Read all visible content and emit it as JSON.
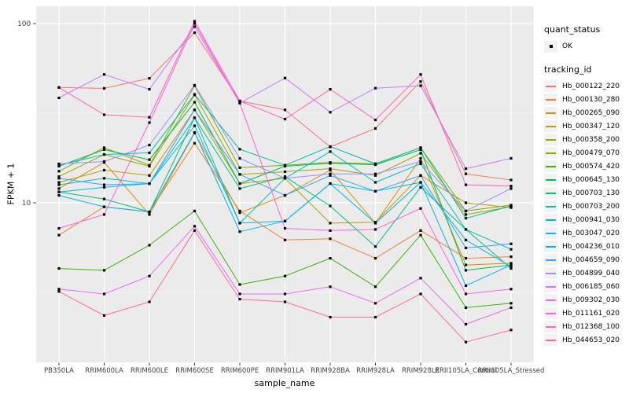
{
  "chart_data": {
    "type": "line",
    "title": "",
    "xlabel": "sample_name",
    "ylabel": "FPKM + 1",
    "y_scale": "log10",
    "y_ticks": [
      100,
      10
    ],
    "ylim": [
      1.3,
      125
    ],
    "grid": true,
    "legend_position": "right",
    "x_categories": [
      "PB350LA",
      "RRIM600LA",
      "RRIM600LE",
      "RRIM600SE",
      "RRIM600PE",
      "RRIM901LA",
      "RRIM928BA",
      "RRIM928LA",
      "RRIM928LE",
      "RRII105LA_Control",
      "RRII105LA_Stressed"
    ],
    "legend": {
      "quant_status_title": "quant_status",
      "quant_status_items": [
        {
          "label": "OK",
          "marker": "black-point"
        }
      ],
      "tracking_id_title": "tracking_id"
    },
    "series": [
      {
        "name": "Hb_000122_220",
        "color": "#F8766D",
        "values": [
          44,
          43.5,
          49.5,
          89,
          37,
          33,
          20.5,
          26,
          47.5,
          14.5,
          13.4
        ]
      },
      {
        "name": "Hb_000130_280",
        "color": "#EA8331",
        "values": [
          6.6,
          9.5,
          8.9,
          21.5,
          9.0,
          6.2,
          6.3,
          4.9,
          7.0,
          4.9,
          5.0
        ]
      },
      {
        "name": "Hb_000265_090",
        "color": "#D89000",
        "values": [
          12,
          16.8,
          8.6,
          24.5,
          8.8,
          11,
          15.2,
          7.7,
          17.7,
          4.5,
          4.6
        ]
      },
      {
        "name": "Hb_000347_120",
        "color": "#C09B00",
        "values": [
          13,
          15.2,
          14.2,
          33,
          12.8,
          13.7,
          7.7,
          7.8,
          14.2,
          10,
          9.4
        ]
      },
      {
        "name": "Hb_000358_200",
        "color": "#A3A500",
        "values": [
          14,
          18.6,
          16,
          40,
          14.4,
          14.9,
          15.5,
          14.2,
          18.9,
          8.6,
          9.5
        ]
      },
      {
        "name": "Hb_000479_070",
        "color": "#7CAE00",
        "values": [
          15,
          20.3,
          16.2,
          45,
          15.7,
          16.2,
          16.8,
          16.5,
          20.3,
          9.0,
          9.7
        ]
      },
      {
        "name": "Hb_000574_420",
        "color": "#39B600",
        "values": [
          4.3,
          4.2,
          5.8,
          9.0,
          3.5,
          3.9,
          4.9,
          3.4,
          6.6,
          2.6,
          2.75
        ]
      },
      {
        "name": "Hb_000645_130",
        "color": "#00BB4E",
        "values": [
          16,
          19.8,
          17.4,
          36.4,
          12.8,
          16,
          16.6,
          16.3,
          19.8,
          4.2,
          4.5
        ]
      },
      {
        "name": "Hb_000703_130",
        "color": "#00BF7D",
        "values": [
          11.5,
          10.5,
          8.9,
          29.8,
          12,
          14,
          9.6,
          5.7,
          12.2,
          7.1,
          4.3
        ]
      },
      {
        "name": "Hb_000703_200",
        "color": "#00C1A3",
        "values": [
          16.2,
          18.6,
          19,
          40.3,
          19.9,
          16.2,
          20.6,
          16.5,
          20.3,
          8.2,
          9.6
        ]
      },
      {
        "name": "Hb_000941_030",
        "color": "#00BFC4",
        "values": [
          12.6,
          13.7,
          12.8,
          26.9,
          7.7,
          13.7,
          19.3,
          13,
          16.5,
          7.1,
          5.5
        ]
      },
      {
        "name": "Hb_003047_020",
        "color": "#00BAE0",
        "values": [
          11.5,
          12.2,
          12.8,
          29.8,
          7.7,
          7.9,
          12.8,
          11.6,
          13,
          6.2,
          4.4
        ]
      },
      {
        "name": "Hb_004236_010",
        "color": "#00B0F6",
        "values": [
          11,
          9.5,
          8.9,
          24.7,
          6.9,
          7.9,
          12.8,
          7.7,
          13,
          3.45,
          4.5
        ]
      },
      {
        "name": "Hb_004659_090",
        "color": "#35A2FF",
        "values": [
          13.7,
          12.6,
          12.8,
          33,
          14.4,
          11,
          14.2,
          11.6,
          14.2,
          5.6,
          5.9
        ]
      },
      {
        "name": "Hb_004899_040",
        "color": "#9590FF",
        "values": [
          16.5,
          17,
          21,
          45.3,
          17.7,
          13.7,
          14.5,
          14.5,
          17,
          9.0,
          12.0
        ]
      },
      {
        "name": "Hb_006185_060",
        "color": "#C77CFF",
        "values": [
          38.5,
          52,
          43,
          96,
          36,
          49.7,
          32,
          43.6,
          45,
          15.5,
          17.7
        ]
      },
      {
        "name": "Hb_009302_030",
        "color": "#E76BF3",
        "values": [
          3.3,
          3.1,
          3.9,
          7.4,
          3.1,
          3.1,
          3.4,
          2.75,
          3.8,
          2.1,
          2.6
        ]
      },
      {
        "name": "Hb_011161_020",
        "color": "#FA62DB",
        "values": [
          7.2,
          8.6,
          28,
          100,
          36,
          7.2,
          7.0,
          7.1,
          9.3,
          3.1,
          3.3
        ]
      },
      {
        "name": "Hb_012368_100",
        "color": "#FF62BC",
        "values": [
          44,
          31,
          30,
          103,
          37,
          29.3,
          43,
          29,
          52,
          12.6,
          12.4
        ]
      },
      {
        "name": "Hb_044653_020",
        "color": "#FF6A98",
        "values": [
          3.2,
          2.35,
          2.8,
          7.0,
          2.9,
          2.8,
          2.3,
          2.3,
          3.1,
          1.67,
          1.95
        ]
      }
    ],
    "colors": {
      "panel_background": "#EBEBEB",
      "grid": "#FFFFFF",
      "point": "#000000",
      "axis_text": "#404040",
      "legend_key_background": "#F2F2F2"
    }
  }
}
